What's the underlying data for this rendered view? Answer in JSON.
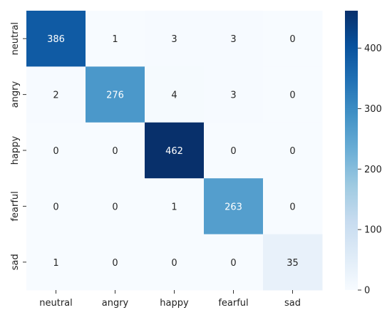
{
  "chart_data": {
    "type": "heatmap",
    "title": "",
    "xlabel": "",
    "ylabel": "",
    "x_categories": [
      "neutral",
      "angry",
      "happy",
      "fearful",
      "sad"
    ],
    "y_categories": [
      "neutral",
      "angry",
      "happy",
      "fearful",
      "sad"
    ],
    "values": [
      [
        386,
        1,
        3,
        3,
        0
      ],
      [
        2,
        276,
        4,
        3,
        0
      ],
      [
        0,
        0,
        462,
        0,
        0
      ],
      [
        0,
        0,
        1,
        263,
        0
      ],
      [
        1,
        0,
        0,
        0,
        35
      ]
    ],
    "colorbar": {
      "range": [
        0,
        462
      ],
      "ticks": [
        "0",
        "100",
        "200",
        "300",
        "400"
      ],
      "tick_values": [
        0,
        100,
        200,
        300,
        400
      ]
    },
    "colormap": "Blues",
    "colors": {
      "low": "#f7fbff",
      "high": "#08306b",
      "text_dark": "#262626",
      "text_light": "#ffffff"
    },
    "grid": false,
    "legend": "none"
  }
}
